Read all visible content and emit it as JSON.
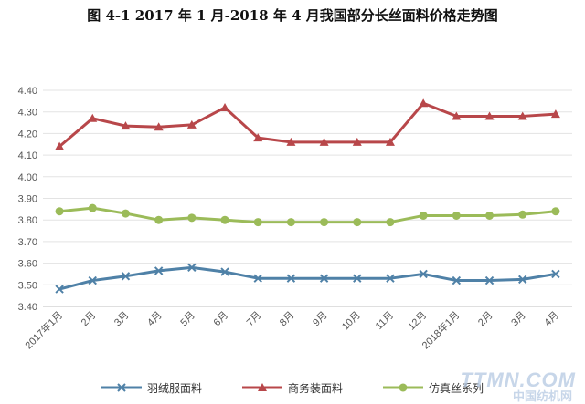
{
  "chart_data": {
    "type": "line",
    "title": "图 4-1    2017 年 1 月-2018 年 4 月我国部分长丝面料价格走势图",
    "categories": [
      "2017年1月",
      "2月",
      "3月",
      "4月",
      "5月",
      "6月",
      "7月",
      "8月",
      "9月",
      "10月",
      "11月",
      "12月",
      "2018年1月",
      "2月",
      "3月",
      "4月"
    ],
    "ylim": [
      3.4,
      4.4
    ],
    "yticks": [
      "3.40",
      "3.50",
      "3.60",
      "3.70",
      "3.80",
      "3.90",
      "4.00",
      "4.10",
      "4.20",
      "4.30",
      "4.40"
    ],
    "grid": true,
    "legend_position": "bottom",
    "series": [
      {
        "name": "羽绒服面料",
        "color": "#4f81a7",
        "marker": "x",
        "values": [
          3.48,
          3.52,
          3.54,
          3.565,
          3.58,
          3.56,
          3.53,
          3.53,
          3.53,
          3.53,
          3.53,
          3.55,
          3.52,
          3.52,
          3.525,
          3.55
        ]
      },
      {
        "name": "商务装面料",
        "color": "#b8474a",
        "marker": "triangle",
        "values": [
          4.14,
          4.27,
          4.235,
          4.23,
          4.24,
          4.32,
          4.18,
          4.16,
          4.16,
          4.16,
          4.16,
          4.34,
          4.28,
          4.28,
          4.28,
          4.29
        ]
      },
      {
        "name": "仿真丝系列",
        "color": "#9bbb59",
        "marker": "circle",
        "values": [
          3.84,
          3.855,
          3.83,
          3.8,
          3.81,
          3.8,
          3.79,
          3.79,
          3.79,
          3.79,
          3.79,
          3.82,
          3.82,
          3.82,
          3.825,
          3.84
        ]
      }
    ]
  },
  "watermark": {
    "line1": "TTMN.COM",
    "line2": "中国纺机网"
  }
}
